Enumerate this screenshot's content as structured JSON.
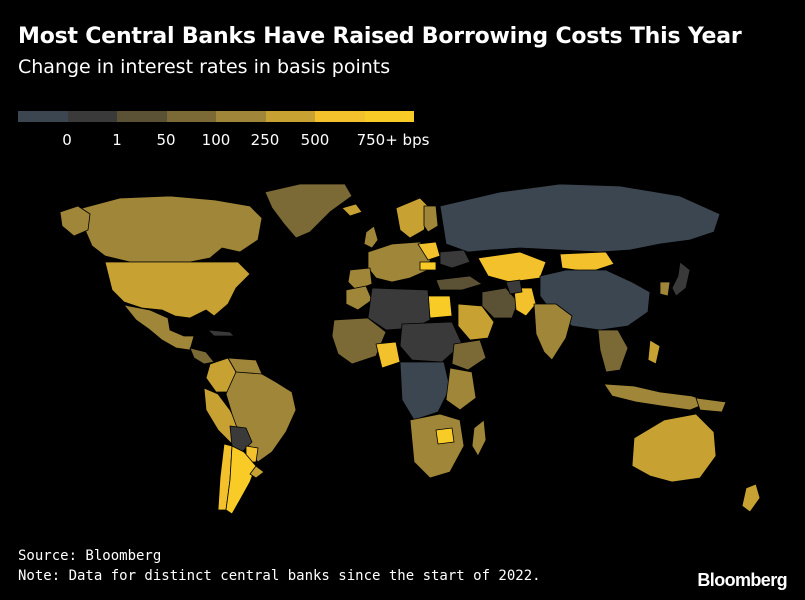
{
  "header": {
    "title": "Most Central Banks Have Raised Borrowing Costs This Year",
    "subtitle": "Change in interest rates in basis points"
  },
  "legend": {
    "labels": [
      "0",
      "1",
      "50",
      "100",
      "250",
      "500",
      "750+ bps"
    ],
    "colors": [
      "#3b4651",
      "#3a3a3a",
      "#5b5134",
      "#7b6a36",
      "#a08638",
      "#c7a233",
      "#f2c12c",
      "#f8cb26"
    ]
  },
  "footer": {
    "source": "Source: Bloomberg",
    "note": "Note: Data for distinct central banks since the start of 2022.",
    "brand": "Bloomberg"
  }
}
